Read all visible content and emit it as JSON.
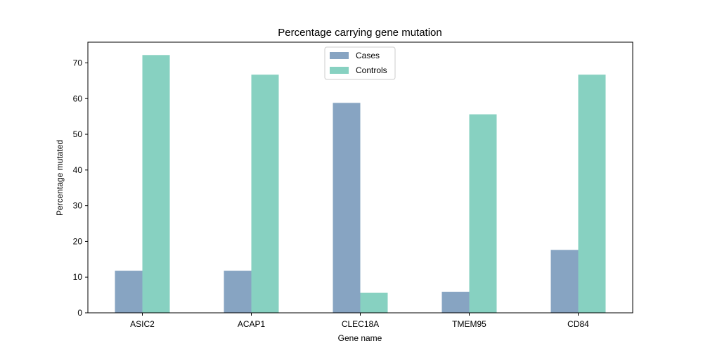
{
  "chart_data": {
    "type": "bar",
    "title": "Percentage carrying gene mutation",
    "xlabel": "Gene name",
    "ylabel": "Percentage mutated",
    "categories": [
      "ASIC2",
      "ACAP1",
      "CLEC18A",
      "TMEM95",
      "CD84"
    ],
    "series": [
      {
        "name": "Cases",
        "color": "#87a4c2",
        "values": [
          11.8,
          11.8,
          58.8,
          5.9,
          17.6
        ]
      },
      {
        "name": "Controls",
        "color": "#87d1c1",
        "values": [
          72.2,
          66.7,
          5.6,
          55.6,
          66.7
        ]
      }
    ],
    "ylim": [
      0,
      75.8
    ],
    "yticks": [
      0,
      10,
      20,
      30,
      40,
      50,
      60,
      70
    ],
    "grid": false,
    "legend_position": "top-center"
  }
}
